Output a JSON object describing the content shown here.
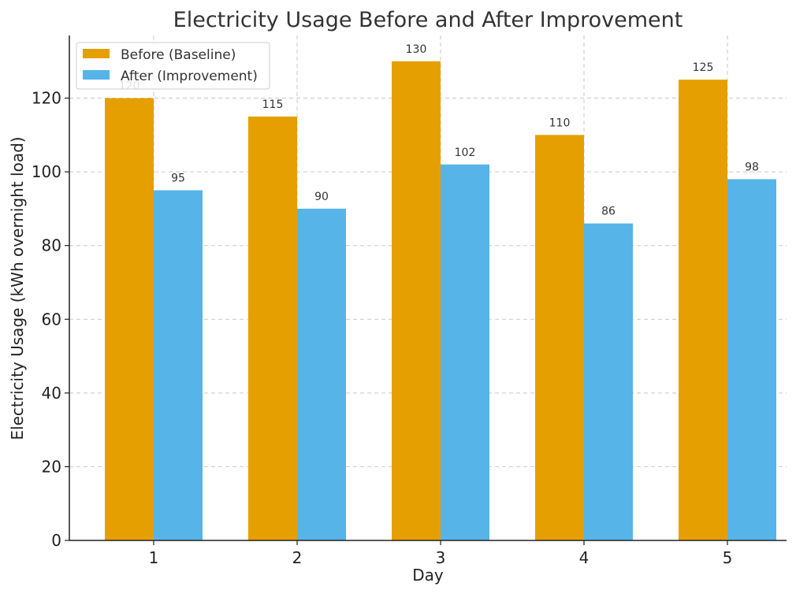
{
  "chart_data": {
    "type": "bar",
    "title": "Electricity Usage Before and After Improvement",
    "xlabel": "Day",
    "ylabel": "Electricity Usage (kWh overnight load)",
    "categories": [
      "1",
      "2",
      "3",
      "4",
      "5"
    ],
    "series": [
      {
        "name": "Before (Baseline)",
        "color": "#E69F00",
        "values": [
          120,
          115,
          130,
          110,
          125
        ]
      },
      {
        "name": "After (Improvement)",
        "color": "#56B4E9",
        "values": [
          95,
          90,
          102,
          86,
          98
        ]
      }
    ],
    "ylim": [
      0,
      137
    ],
    "yticks": [
      0,
      20,
      40,
      60,
      80,
      100,
      120
    ],
    "grid": true,
    "legend_position": "top-left",
    "data_labels": true
  }
}
